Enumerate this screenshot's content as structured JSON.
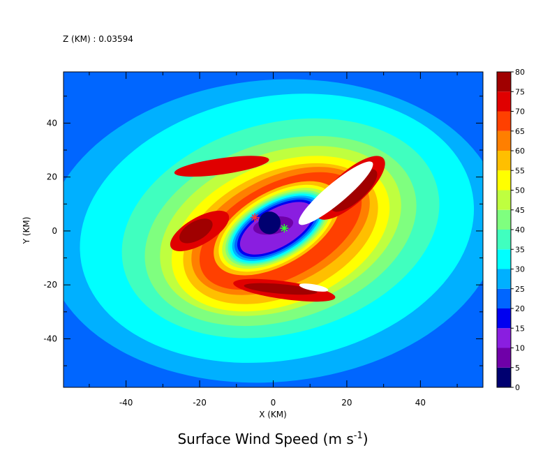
{
  "header": {
    "z_label": "Z (KM) : 0.03594"
  },
  "chart_data": {
    "type": "heatmap",
    "title": "Surface Wind Speed (m s",
    "title_superscript": "-1",
    "title_close": ")",
    "xlabel": "X (KM)",
    "ylabel": "Y (KM)",
    "xlim": [
      -57,
      57
    ],
    "ylim": [
      -58,
      59
    ],
    "x_ticks": [
      -40,
      -20,
      0,
      20,
      40
    ],
    "y_ticks": [
      -40,
      -20,
      0,
      20,
      40
    ],
    "x_tick_labels": [
      "-40",
      "-20",
      "0",
      "20",
      "40"
    ],
    "y_tick_labels": [
      "-40",
      "-20",
      "0",
      "20",
      "40"
    ],
    "colorbar": {
      "levels": [
        0,
        5,
        10,
        15,
        20,
        25,
        30,
        35,
        40,
        45,
        50,
        55,
        60,
        65,
        70,
        75,
        80
      ],
      "labels": [
        "0",
        "5",
        "10",
        "15",
        "20",
        "25",
        "30",
        "35",
        "40",
        "45",
        "50",
        "55",
        "60",
        "65",
        "70",
        "75",
        "80"
      ],
      "colors": [
        "#000070",
        "#6f00a8",
        "#8a1ee0",
        "#0000f0",
        "#0066ff",
        "#00b0ff",
        "#00ffff",
        "#40ffbf",
        "#7fff7f",
        "#bfff3f",
        "#ffff00",
        "#ffbf00",
        "#ff7f00",
        "#ff4000",
        "#e00000",
        "#a00000"
      ]
    },
    "contours": {
      "note": "Filled contours of surface wind speed; each ring = lower bound of a band, drawn outer to inner. Rings are ellipses in data units (cx, cy, rx, ry, rotation deg).",
      "background_level": 20,
      "rings": [
        {
          "level": 25,
          "cx": 0,
          "cy": 0,
          "rx": 62,
          "ry": 56,
          "rot": -5
        },
        {
          "level": 30,
          "cx": 1,
          "cy": 1,
          "rx": 54,
          "ry": 49,
          "rot": -10
        },
        {
          "level": 35,
          "cx": 2,
          "cy": 1,
          "rx": 44,
          "ry": 39,
          "rot": -15
        },
        {
          "level": 40,
          "cx": 2,
          "cy": 0,
          "rx": 38,
          "ry": 33,
          "rot": -18
        },
        {
          "level": 45,
          "cx": 2,
          "cy": 0,
          "rx": 34,
          "ry": 29,
          "rot": -20
        },
        {
          "level": 50,
          "cx": 2,
          "cy": -1,
          "rx": 31,
          "ry": 26,
          "rot": -22
        },
        {
          "level": 55,
          "cx": 2,
          "cy": -1,
          "rx": 28,
          "ry": 23,
          "rot": -24
        },
        {
          "level": 60,
          "cx": 2,
          "cy": 0,
          "rx": 26,
          "ry": 20,
          "rot": -26
        },
        {
          "level": 65,
          "cx": 2,
          "cy": 0,
          "rx": 24,
          "ry": 17.5,
          "rot": -28
        },
        {
          "level": 55,
          "cx": 1,
          "cy": 1,
          "rx": 19,
          "ry": 13.5,
          "rot": -30
        },
        {
          "level": 50,
          "cx": 1,
          "cy": 1,
          "rx": 17.5,
          "ry": 12.5,
          "rot": -30
        },
        {
          "level": 45,
          "cx": 1,
          "cy": 1,
          "rx": 16.5,
          "ry": 11.5,
          "rot": -30
        },
        {
          "level": 40,
          "cx": 1,
          "cy": 1,
          "rx": 15.5,
          "ry": 10.8,
          "rot": -30
        },
        {
          "level": 35,
          "cx": 1,
          "cy": 1,
          "rx": 14.8,
          "ry": 10.2,
          "rot": -30
        },
        {
          "level": 30,
          "cx": 1,
          "cy": 1,
          "rx": 14.2,
          "ry": 9.7,
          "rot": -30
        },
        {
          "level": 25,
          "cx": 1,
          "cy": 1,
          "rx": 13.5,
          "ry": 9.1,
          "rot": -30
        },
        {
          "level": 20,
          "cx": 1,
          "cy": 1,
          "rx": 12.8,
          "ry": 8.5,
          "rot": -30
        },
        {
          "level": 15,
          "cx": 1,
          "cy": 1,
          "rx": 12,
          "ry": 7.8,
          "rot": -30
        },
        {
          "level": 10,
          "cx": 1,
          "cy": 1,
          "rx": 11.2,
          "ry": 7.0,
          "rot": -30
        },
        {
          "level": 5,
          "cx": 0,
          "cy": 2,
          "rx": 5.5,
          "ry": 3.2,
          "rot": -10
        },
        {
          "level": 0,
          "cx": -1,
          "cy": 3,
          "rx": 3,
          "ry": 4.2,
          "rot": 0
        }
      ],
      "patches": [
        {
          "level": 70,
          "cx": -14,
          "cy": 24,
          "rx": 13,
          "ry": 3,
          "rot": -8
        },
        {
          "level": 70,
          "cx": 21,
          "cy": 16,
          "rx": 12,
          "ry": 6,
          "rot": -42
        },
        {
          "level": 75,
          "cx": 22,
          "cy": 15,
          "rx": 8,
          "ry": 4,
          "rot": -42
        },
        {
          "level": 70,
          "cx": -20,
          "cy": 0,
          "rx": 9,
          "ry": 5,
          "rot": -30
        },
        {
          "level": 75,
          "cx": -21,
          "cy": 0,
          "rx": 5,
          "ry": 3.5,
          "rot": -30
        },
        {
          "level": 70,
          "cx": 3,
          "cy": -22,
          "rx": 14,
          "ry": 3.3,
          "rot": 8
        },
        {
          "level": 75,
          "cx": 2,
          "cy": -21.5,
          "rx": 10,
          "ry": 1.8,
          "rot": 5
        }
      ],
      "missing_regions": [
        {
          "cx": 17,
          "cy": 14,
          "rx": 13,
          "ry": 3.8,
          "rot": -40
        },
        {
          "cx": 11,
          "cy": -21,
          "rx": 4,
          "ry": 1.2,
          "rot": 10
        }
      ]
    },
    "markers": [
      {
        "name": "red-star-marker",
        "x": -5,
        "y": 5,
        "color": "#ff3333"
      },
      {
        "name": "green-star-marker",
        "x": 3,
        "y": 1,
        "color": "#33ff33"
      }
    ]
  }
}
